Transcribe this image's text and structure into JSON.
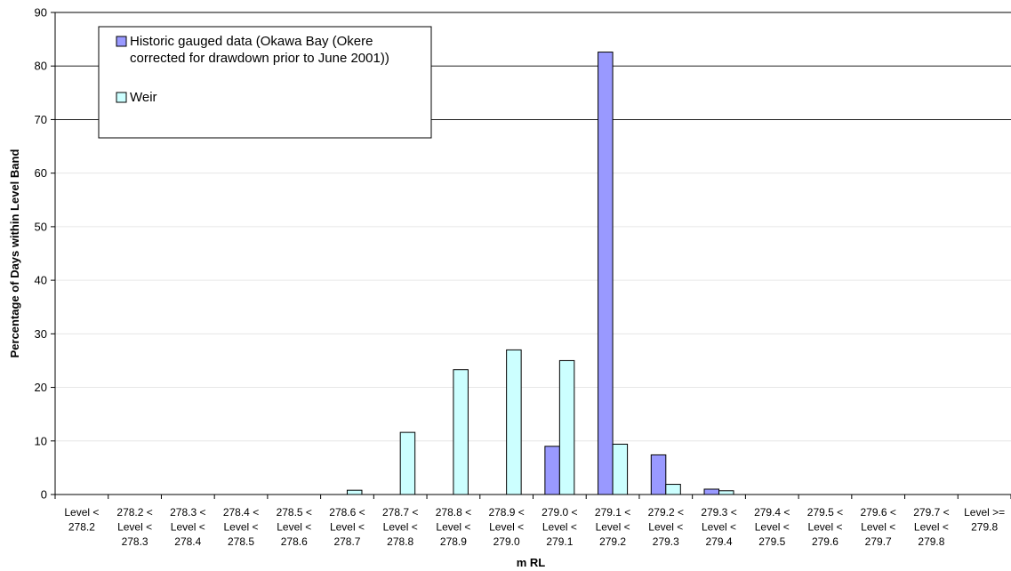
{
  "chart_data": {
    "type": "bar",
    "xlabel": "m RL",
    "ylabel": "Percentage of Days within Level Band",
    "ylim": [
      0,
      90
    ],
    "yticks": [
      0,
      10,
      20,
      30,
      40,
      50,
      60,
      70,
      80,
      90
    ],
    "grid": "horizontal at 70, 80, 90",
    "legend_position": "top-left",
    "categories": [
      [
        "Level <",
        "278.2"
      ],
      [
        "278.2 <",
        "Level <",
        "278.3"
      ],
      [
        "278.3 <",
        "Level <",
        "278.4"
      ],
      [
        "278.4 <",
        "Level <",
        "278.5"
      ],
      [
        "278.5 <",
        "Level <",
        "278.6"
      ],
      [
        "278.6 <",
        "Level <",
        "278.7"
      ],
      [
        "278.7 <",
        "Level <",
        "278.8"
      ],
      [
        "278.8 <",
        "Level <",
        "278.9"
      ],
      [
        "278.9 <",
        "Level <",
        "279.0"
      ],
      [
        "279.0 <",
        "Level <",
        "279.1"
      ],
      [
        "279.1 <",
        "Level <",
        "279.2"
      ],
      [
        "279.2 <",
        "Level <",
        "279.3"
      ],
      [
        "279.3 <",
        "Level <",
        "279.4"
      ],
      [
        "279.4 <",
        "Level <",
        "279.5"
      ],
      [
        "279.5 <",
        "Level <",
        "279.6"
      ],
      [
        "279.6 <",
        "Level <",
        "279.7"
      ],
      [
        "279.7 <",
        "Level <",
        "279.8"
      ],
      [
        "Level >=",
        "279.8"
      ]
    ],
    "series": [
      {
        "name": "Historic gauged data (Okawa Bay (Okere corrected for drawdown prior to June 2001))",
        "legend_lines": [
          "Historic gauged data (Okawa Bay (Okere",
          "corrected for drawdown prior to June 2001))"
        ],
        "color": "#9999ff",
        "values": [
          0,
          0,
          0,
          0,
          0,
          0,
          0,
          0,
          0,
          9.0,
          82.6,
          7.4,
          1.0,
          0,
          0,
          0,
          0,
          0
        ]
      },
      {
        "name": "Weir",
        "legend_lines": [
          "Weir"
        ],
        "color": "#ccffff",
        "values": [
          0,
          0,
          0,
          0,
          0,
          0.8,
          11.6,
          23.3,
          27.0,
          25.0,
          9.4,
          1.9,
          0.7,
          0,
          0,
          0,
          0,
          0
        ]
      }
    ]
  }
}
